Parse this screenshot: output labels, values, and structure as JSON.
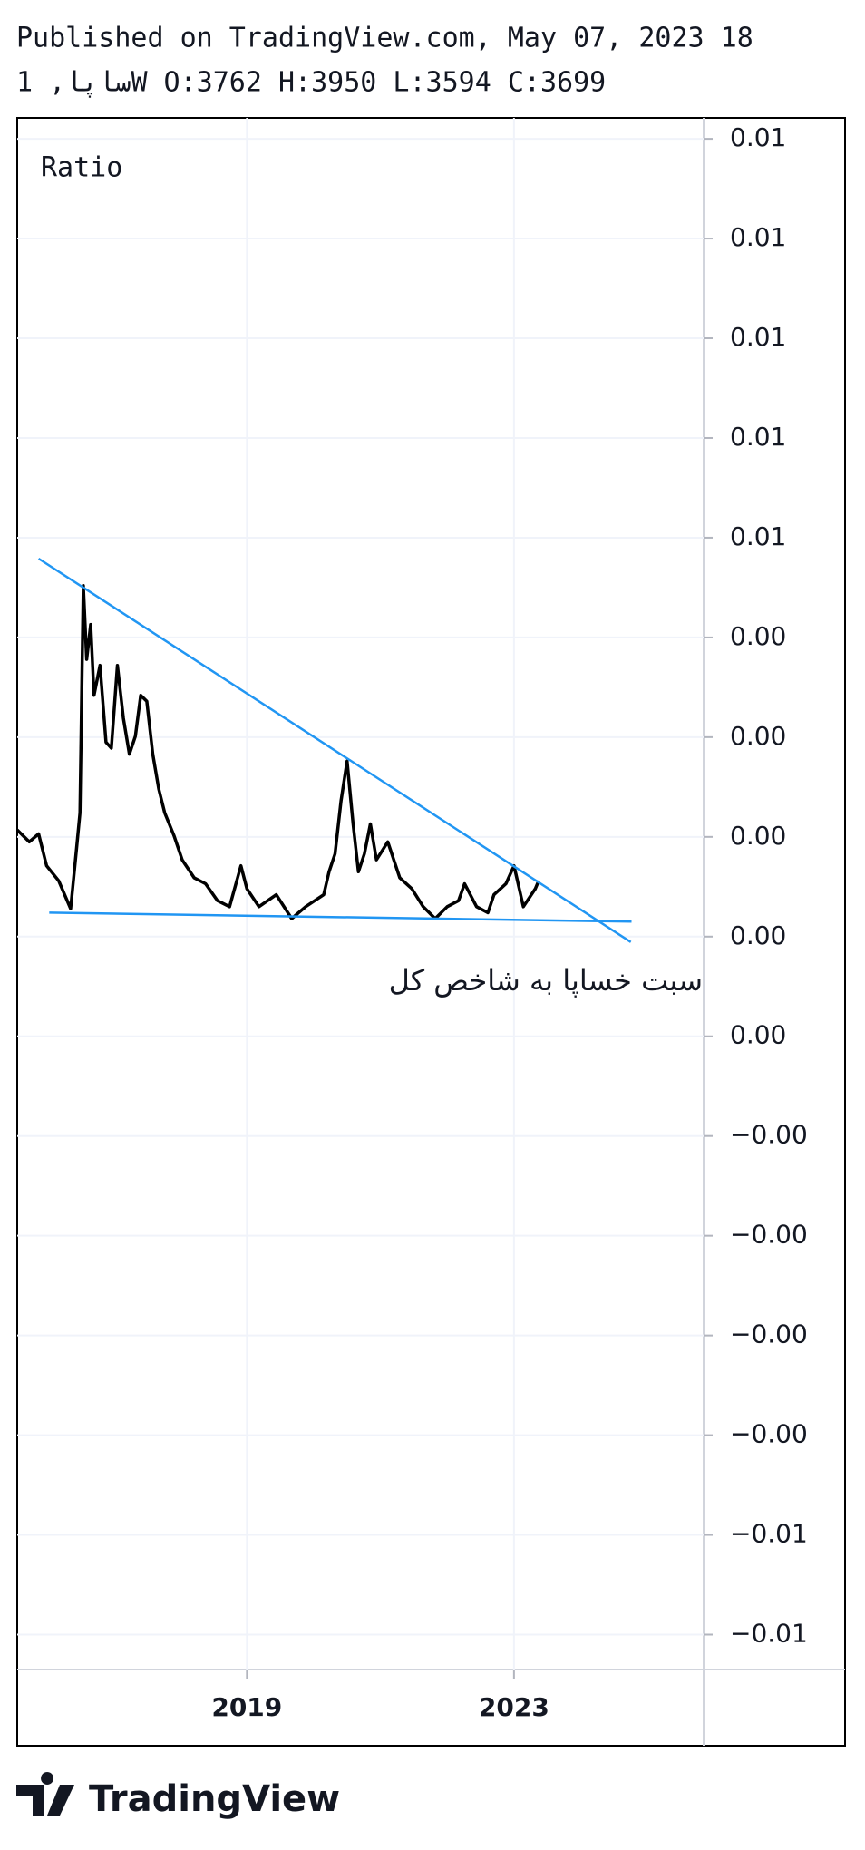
{
  "chart_data": {
    "type": "line",
    "title": "Published on TradingView.com, May 07, 2023 18",
    "subtitle": "ساپا, 1W O:3762 H:3950 L:3594 C:3699",
    "label": "Ratio",
    "annotation": "سبت خساپا به شاخص کل",
    "brand": "TradingView",
    "xlim": [
      2015.56,
      2025.84
    ],
    "xticks": [
      2019,
      2023
    ],
    "ylim": [
      -0.00635,
      0.00921
    ],
    "yticks": [
      {
        "value": 0.009,
        "label": "0.01"
      },
      {
        "value": 0.008,
        "label": "0.01"
      },
      {
        "value": 0.007,
        "label": "0.01"
      },
      {
        "value": 0.006,
        "label": "0.01"
      },
      {
        "value": 0.005,
        "label": "0.01"
      },
      {
        "value": 0.004,
        "label": "0.00"
      },
      {
        "value": 0.003,
        "label": "0.00"
      },
      {
        "value": 0.002,
        "label": "0.00"
      },
      {
        "value": 0.001,
        "label": "0.00"
      },
      {
        "value": 0,
        "label": "0.00"
      },
      {
        "value": -0.001,
        "label": "−0.00"
      },
      {
        "value": -0.002,
        "label": "−0.00"
      },
      {
        "value": -0.003,
        "label": "−0.00"
      },
      {
        "value": -0.004,
        "label": "−0.00"
      },
      {
        "value": -0.005,
        "label": "−0.01"
      },
      {
        "value": -0.006,
        "label": "−0.01"
      }
    ],
    "grid": true,
    "series": [
      {
        "color": "#000000",
        "x": [
          2015.56,
          2015.74,
          2015.88,
          2016.0,
          2016.18,
          2016.36,
          2016.45,
          2016.5,
          2016.55,
          2016.6,
          2016.66,
          2016.71,
          2016.8,
          2016.89,
          2016.97,
          2017.06,
          2017.15,
          2017.24,
          2017.33,
          2017.41,
          2017.5,
          2017.59,
          2017.68,
          2017.77,
          2017.91,
          2018.03,
          2018.21,
          2018.38,
          2018.56,
          2018.74,
          2018.91,
          2019.0,
          2019.18,
          2019.44,
          2019.67,
          2019.88,
          2020.15,
          2020.23,
          2020.32,
          2020.41,
          2020.5,
          2020.59,
          2020.67,
          2020.76,
          2020.85,
          2020.94,
          2021.11,
          2021.29,
          2021.47,
          2021.64,
          2021.82,
          2022.0,
          2022.17,
          2022.26,
          2022.44,
          2022.61,
          2022.7,
          2022.88,
          2023.0,
          2023.14,
          2023.32,
          2023.37
        ],
        "values": [
          0.00207,
          0.00195,
          0.00203,
          0.00171,
          0.00156,
          0.00128,
          0.00189,
          0.00224,
          0.00452,
          0.00378,
          0.00413,
          0.00342,
          0.00372,
          0.00295,
          0.00289,
          0.00372,
          0.00319,
          0.00283,
          0.00301,
          0.00342,
          0.00336,
          0.00283,
          0.00248,
          0.00224,
          0.00201,
          0.00177,
          0.00159,
          0.00153,
          0.00136,
          0.0013,
          0.00171,
          0.00148,
          0.0013,
          0.00142,
          0.00118,
          0.0013,
          0.00142,
          0.00165,
          0.00183,
          0.00236,
          0.00276,
          0.00213,
          0.00165,
          0.00183,
          0.00213,
          0.00177,
          0.00195,
          0.00159,
          0.00148,
          0.0013,
          0.00118,
          0.0013,
          0.00136,
          0.00153,
          0.0013,
          0.00124,
          0.00142,
          0.00153,
          0.00171,
          0.0013,
          0.00148,
          0.00156
        ]
      }
    ],
    "trend_lines": [
      {
        "color": "#2196f3",
        "x": [
          2015.88,
          2024.75
        ],
        "values": [
          0.00479,
          0.000945
        ]
      },
      {
        "color": "#2196f3",
        "x": [
          2016.04,
          2024.76
        ],
        "values": [
          0.00124,
          0.00115
        ]
      }
    ]
  }
}
